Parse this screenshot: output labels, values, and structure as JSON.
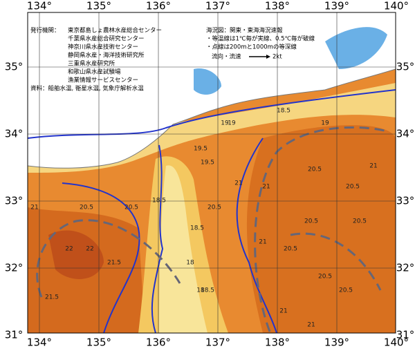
{
  "map": {
    "info": {
      "label": "発行機関：",
      "agencies": [
        "東京都島しょ農林水産総合センター",
        "千葉県水産総合研究センター",
        "神奈川県水産技術センター",
        "静岡県水産・海洋技術研究所",
        "三重県水産研究所",
        "和歌山県水産試験場",
        "漁業情報サービスセンター"
      ],
      "source": "資料：船舶水温, 衛星水温, 気象庁解析水温"
    },
    "legend": {
      "title": "海況図：関東・東海海況速報",
      "notes": [
        "・等温線は1℃毎が実線、0.5℃毎が破線",
        "・点線は200mと1000mの等深線"
      ],
      "arrow_label": "流向・流速",
      "arrow_value": "2kt"
    },
    "lon_ticks": [
      {
        "value": 134,
        "label": "134°"
      },
      {
        "value": 135,
        "label": "135°"
      },
      {
        "value": 136,
        "label": "136°"
      },
      {
        "value": 137,
        "label": "137°"
      },
      {
        "value": 138,
        "label": "138°"
      },
      {
        "value": 139,
        "label": "139°"
      },
      {
        "value": 140,
        "label": "140°"
      }
    ],
    "lat_ticks": [
      {
        "value": 35,
        "label": "35°"
      },
      {
        "value": 34,
        "label": "34°"
      },
      {
        "value": 33,
        "label": "33°"
      },
      {
        "value": 32,
        "label": "32°"
      },
      {
        "value": 31,
        "label": "31°"
      }
    ],
    "contour_labels": [
      "19",
      "19",
      "18.5",
      "18.5",
      "19.5",
      "20.5",
      "20.5",
      "21",
      "21",
      "20.5",
      "20.5",
      "21",
      "22",
      "22",
      "21.5",
      "21.5",
      "18.5",
      "18",
      "18",
      "19.5",
      "20.5",
      "21",
      "20.5",
      "20.5",
      "21",
      "20.5",
      "18.5",
      "19",
      "21",
      "20.5",
      "21",
      "20.5"
    ]
  }
}
